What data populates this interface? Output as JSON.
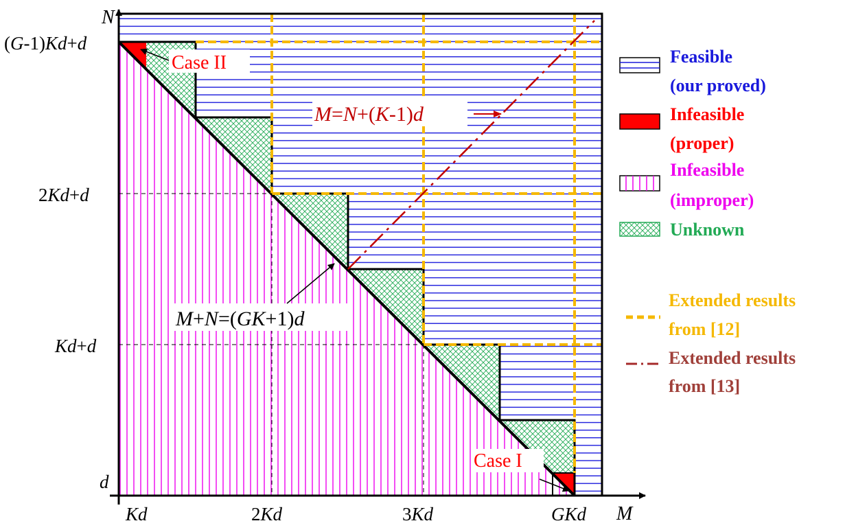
{
  "axes": {
    "x_label": "M",
    "y_label": "N",
    "x_ticks": [
      "Kd",
      "2Kd",
      "3Kd",
      "GKd"
    ],
    "y_ticks": [
      "(G-1)Kd+d",
      "2Kd+d",
      "Kd+d",
      "d"
    ]
  },
  "annotations": {
    "case_ii": "Case II",
    "case_i": "Case I",
    "line_13_eq": "M=N+(K-1)d",
    "diag_eq": "M+N=(GK+1)d"
  },
  "legend": {
    "feasible_line1": "Feasible",
    "feasible_line2": "(our proved)",
    "infeasible_proper_line1": "Infeasible",
    "infeasible_proper_line2": "(proper)",
    "infeasible_improper_line1": "Infeasible",
    "infeasible_improper_line2": "(improper)",
    "unknown": "Unknown",
    "ext12_line1": "Extended results",
    "ext12_line2": "from [12]",
    "ext13_line1": "Extended results",
    "ext13_line2": "from [13]"
  },
  "colors": {
    "feasible": "#1a1adc",
    "infeasible_proper": "#ff0000",
    "infeasible_improper": "#ee00ee",
    "unknown": "#22aa55",
    "ext12": "#f5b800",
    "ext13": "#a52a2a",
    "legend_ext13_text": "#a0403a"
  }
}
